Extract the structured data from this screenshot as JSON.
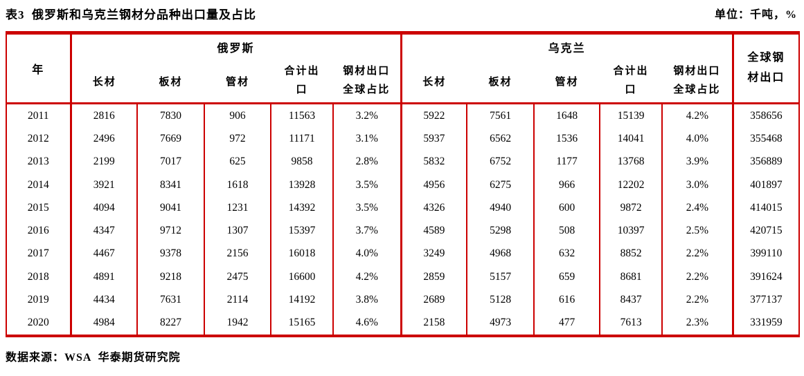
{
  "page": {
    "title": "表3  俄罗斯和乌克兰钢材分品种出口量及占比",
    "unit": "单位：千吨，%",
    "source": "数据来源：WSA  华泰期货研究院"
  },
  "colors": {
    "rule_red": "#CC0000",
    "text": "#000000"
  },
  "table": {
    "year_header": "年",
    "group_headers": [
      "俄罗斯",
      "乌克兰"
    ],
    "sub_headers": [
      "长材",
      "板材",
      "管材",
      "合计出口",
      "钢材出口全球占比"
    ],
    "global_header": "全球钢材出口",
    "rows": [
      {
        "cells": [
          "2011",
          "2816",
          "7830",
          "906",
          "11563",
          "3.2%",
          "5922",
          "7561",
          "1648",
          "15139",
          "4.2%",
          "358656"
        ]
      },
      {
        "cells": [
          "2012",
          "2496",
          "7669",
          "972",
          "11171",
          "3.1%",
          "5937",
          "6562",
          "1536",
          "14041",
          "4.0%",
          "355468"
        ]
      },
      {
        "cells": [
          "2013",
          "2199",
          "7017",
          "625",
          "9858",
          "2.8%",
          "5832",
          "6752",
          "1177",
          "13768",
          "3.9%",
          "356889"
        ]
      },
      {
        "cells": [
          "2014",
          "3921",
          "8341",
          "1618",
          "13928",
          "3.5%",
          "4956",
          "6275",
          "966",
          "12202",
          "3.0%",
          "401897"
        ]
      },
      {
        "cells": [
          "2015",
          "4094",
          "9041",
          "1231",
          "14392",
          "3.5%",
          "4326",
          "4940",
          "600",
          "9872",
          "2.4%",
          "414015"
        ]
      },
      {
        "cells": [
          "2016",
          "4347",
          "9712",
          "1307",
          "15397",
          "3.7%",
          "4589",
          "5298",
          "508",
          "10397",
          "2.5%",
          "420715"
        ]
      },
      {
        "cells": [
          "2017",
          "4467",
          "9378",
          "2156",
          "16018",
          "4.0%",
          "3249",
          "4968",
          "632",
          "8852",
          "2.2%",
          "399110"
        ]
      },
      {
        "cells": [
          "2018",
          "4891",
          "9218",
          "2475",
          "16600",
          "4.2%",
          "2859",
          "5157",
          "659",
          "8681",
          "2.2%",
          "391624"
        ]
      },
      {
        "cells": [
          "2019",
          "4434",
          "7631",
          "2114",
          "14192",
          "3.8%",
          "2689",
          "5128",
          "616",
          "8437",
          "2.2%",
          "377137"
        ]
      },
      {
        "cells": [
          "2020",
          "4984",
          "8227",
          "1942",
          "15165",
          "4.6%",
          "2158",
          "4973",
          "477",
          "7613",
          "2.3%",
          "331959"
        ]
      }
    ]
  }
}
